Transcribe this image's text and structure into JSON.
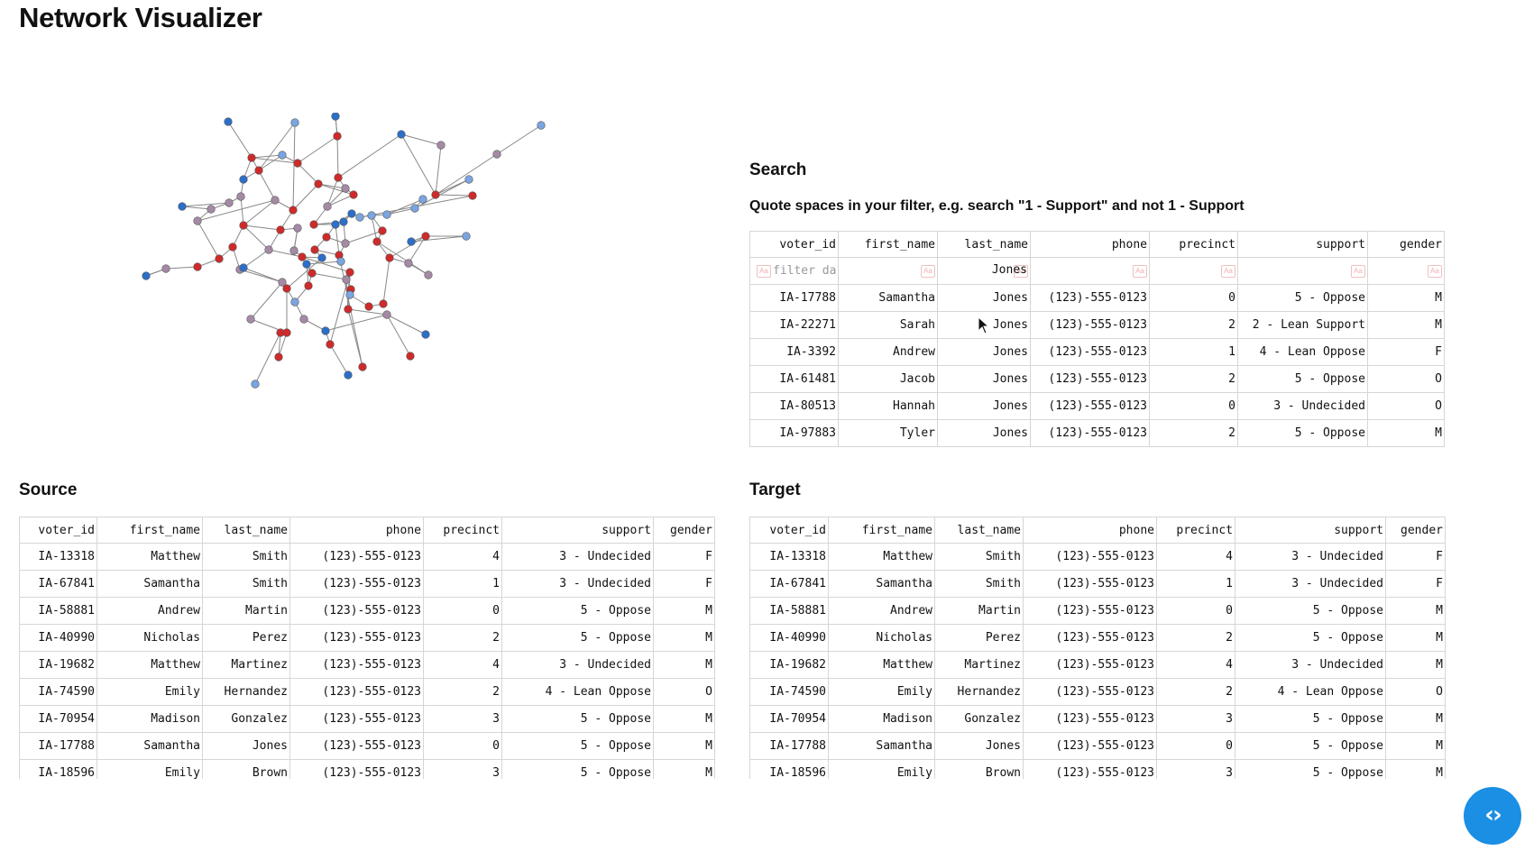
{
  "app": {
    "title": "Network Visualizer"
  },
  "search": {
    "title": "Search",
    "hint": "Quote spaces in your filter, e.g. search \"1 - Support\" and not 1 - Support",
    "filter_placeholder": "filter data",
    "filter_last_name": "Jones",
    "columns": [
      "voter_id",
      "first_name",
      "last_name",
      "phone",
      "precinct",
      "support",
      "gender"
    ],
    "rows": [
      [
        "IA-17788",
        "Samantha",
        "Jones",
        "(123)-555-0123",
        "0",
        "5 - Oppose",
        "M"
      ],
      [
        "IA-22271",
        "Sarah",
        "Jones",
        "(123)-555-0123",
        "2",
        "2 - Lean Support",
        "M"
      ],
      [
        "IA-3392",
        "Andrew",
        "Jones",
        "(123)-555-0123",
        "1",
        "4 - Lean Oppose",
        "F"
      ],
      [
        "IA-61481",
        "Jacob",
        "Jones",
        "(123)-555-0123",
        "2",
        "5 - Oppose",
        "O"
      ],
      [
        "IA-80513",
        "Hannah",
        "Jones",
        "(123)-555-0123",
        "0",
        "3 - Undecided",
        "O"
      ],
      [
        "IA-97883",
        "Tyler",
        "Jones",
        "(123)-555-0123",
        "2",
        "5 - Oppose",
        "M"
      ]
    ]
  },
  "source": {
    "title": "Source",
    "columns": [
      "voter_id",
      "first_name",
      "last_name",
      "phone",
      "precinct",
      "support",
      "gender"
    ],
    "rows": [
      [
        "IA-13318",
        "Matthew",
        "Smith",
        "(123)-555-0123",
        "4",
        "3 - Undecided",
        "F"
      ],
      [
        "IA-67841",
        "Samantha",
        "Smith",
        "(123)-555-0123",
        "1",
        "3 - Undecided",
        "F"
      ],
      [
        "IA-58881",
        "Andrew",
        "Martin",
        "(123)-555-0123",
        "0",
        "5 - Oppose",
        "M"
      ],
      [
        "IA-40990",
        "Nicholas",
        "Perez",
        "(123)-555-0123",
        "2",
        "5 - Oppose",
        "M"
      ],
      [
        "IA-19682",
        "Matthew",
        "Martinez",
        "(123)-555-0123",
        "4",
        "3 - Undecided",
        "M"
      ],
      [
        "IA-74590",
        "Emily",
        "Hernandez",
        "(123)-555-0123",
        "2",
        "4 - Lean Oppose",
        "O"
      ],
      [
        "IA-70954",
        "Madison",
        "Gonzalez",
        "(123)-555-0123",
        "3",
        "5 - Oppose",
        "M"
      ],
      [
        "IA-17788",
        "Samantha",
        "Jones",
        "(123)-555-0123",
        "0",
        "5 - Oppose",
        "M"
      ],
      [
        "IA-18596",
        "Emily",
        "Brown",
        "(123)-555-0123",
        "3",
        "5 - Oppose",
        "M"
      ]
    ]
  },
  "target": {
    "title": "Target",
    "columns": [
      "voter_id",
      "first_name",
      "last_name",
      "phone",
      "precinct",
      "support",
      "gender"
    ],
    "rows": [
      [
        "IA-13318",
        "Matthew",
        "Smith",
        "(123)-555-0123",
        "4",
        "3 - Undecided",
        "F"
      ],
      [
        "IA-67841",
        "Samantha",
        "Smith",
        "(123)-555-0123",
        "1",
        "3 - Undecided",
        "F"
      ],
      [
        "IA-58881",
        "Andrew",
        "Martin",
        "(123)-555-0123",
        "0",
        "5 - Oppose",
        "M"
      ],
      [
        "IA-40990",
        "Nicholas",
        "Perez",
        "(123)-555-0123",
        "2",
        "5 - Oppose",
        "M"
      ],
      [
        "IA-19682",
        "Matthew",
        "Martinez",
        "(123)-555-0123",
        "4",
        "3 - Undecided",
        "M"
      ],
      [
        "IA-74590",
        "Emily",
        "Hernandez",
        "(123)-555-0123",
        "2",
        "4 - Lean Oppose",
        "O"
      ],
      [
        "IA-70954",
        "Madison",
        "Gonzalez",
        "(123)-555-0123",
        "3",
        "5 - Oppose",
        "M"
      ],
      [
        "IA-17788",
        "Samantha",
        "Jones",
        "(123)-555-0123",
        "0",
        "5 - Oppose",
        "M"
      ],
      [
        "IA-18596",
        "Emily",
        "Brown",
        "(123)-555-0123",
        "3",
        "5 - Oppose",
        "M"
      ]
    ]
  },
  "network": {
    "support_colors": {
      "1 - Support": "#2c6fc9",
      "2 - Lean Support": "#7aa5e0",
      "3 - Undecided": "#a58aa5",
      "4 - Lean Oppose": "#de7675",
      "5 - Oppose": "#cf2a2a"
    },
    "edge_color": "#888888",
    "node_stroke": "#555555"
  },
  "code_button": {
    "icon": "code-icon"
  },
  "colors": {
    "accent": "#1a8fe3",
    "border": "#d6d6d6"
  }
}
